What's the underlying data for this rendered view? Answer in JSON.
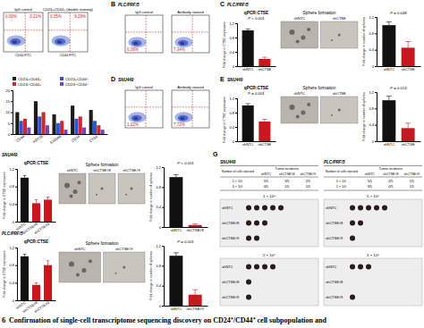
{
  "chart_data": [
    {
      "type": "bar",
      "categories": [
        "CD44",
        "KRT20",
        "S100A6",
        "CD24",
        "CTSE"
      ],
      "series": [
        {
          "name": "CD24+CD44+",
          "color": "#1b1b1b",
          "values": [
            10,
            15,
            9,
            13,
            11
          ]
        },
        {
          "name": "CD24+CD44−",
          "color": "#2f55d4",
          "values": [
            6,
            8,
            5,
            7,
            6
          ]
        },
        {
          "name": "CD24−CD44+",
          "color": "#d0282e",
          "values": [
            7,
            10,
            6,
            8,
            4
          ]
        },
        {
          "name": "CD24−CD44−",
          "color": "#7b44b5",
          "values": [
            3,
            4,
            2,
            3,
            2
          ]
        }
      ],
      "ylim": [
        0,
        20
      ],
      "yticks": [
        0,
        5,
        10,
        15,
        20
      ],
      "legend": "top"
    },
    {
      "type": "bar",
      "title": "qPCR:CTSE",
      "y_label": "Fold change in CTSE expression",
      "annotations": [
        "P < 0.001"
      ],
      "categories": [
        "shNTC",
        "shCTSE"
      ],
      "values": [
        1,
        0.2
      ],
      "errors": [
        0.04,
        0.05
      ],
      "colors": [
        "#111111",
        "#c8171e"
      ],
      "ylim": [
        0,
        1.2
      ],
      "yticks": [
        0,
        0.4,
        0.8,
        1.2
      ]
    },
    {
      "type": "bar",
      "y_label": "Fold change in number of spheres",
      "annotations": [
        "P = 0.048"
      ],
      "categories": [
        "shNTC",
        "shCTSE"
      ],
      "values": [
        1,
        0.45
      ],
      "errors": [
        0.08,
        0.15
      ],
      "colors": [
        "#111111",
        "#c8171e"
      ],
      "ylim": [
        0,
        1.2
      ],
      "yticks": [
        0,
        0.4,
        0.8,
        1.2
      ]
    },
    {
      "type": "bar",
      "title": "qPCR:CTSE",
      "y_label": "Fold change in CTSE expression",
      "annotations": [
        "P = 0.001"
      ],
      "categories": [
        "shNTC",
        "shCTSE"
      ],
      "values": [
        1,
        0.55
      ],
      "errors": [
        0.05,
        0.06
      ],
      "colors": [
        "#111111",
        "#c8171e"
      ],
      "ylim": [
        0,
        1.2
      ],
      "yticks": [
        0,
        0.4,
        0.8,
        1.2
      ]
    },
    {
      "type": "bar",
      "y_label": "Fold change in number of spheres",
      "annotations": [
        "P = 0.013"
      ],
      "categories": [
        "shNTC",
        "shCTSE"
      ],
      "values": [
        1,
        0.32
      ],
      "errors": [
        0.1,
        0.12
      ],
      "colors": [
        "#111111",
        "#c8171e"
      ],
      "ylim": [
        0,
        1.2
      ],
      "yticks": [
        0,
        0.4,
        0.8,
        1.2
      ]
    },
    {
      "type": "bar",
      "title": "qPCR:CTSE",
      "y_label": "Fold change in CTSE expression",
      "categories": [
        "shNTC",
        "shCTSE#8",
        "shCTSE#9"
      ],
      "values": [
        1,
        0.42,
        0.5
      ],
      "errors": [
        0.05,
        0.08,
        0.06
      ],
      "colors": [
        "#111111",
        "#c8171e",
        "#c8171e"
      ],
      "ylim": [
        0,
        1.2
      ],
      "yticks": [
        0,
        0.4,
        0.8,
        1.2
      ]
    },
    {
      "type": "bar",
      "y_label": "Fold change in number of spheres",
      "annotations": [
        "P < 0.001"
      ],
      "categories": [
        "shNTC",
        "shCTSE#8"
      ],
      "values": [
        1,
        0.04
      ],
      "errors": [
        0.05,
        0.02
      ],
      "colors": [
        "#111111",
        "#c8171e"
      ],
      "ylim": [
        0,
        1.2
      ],
      "yticks": [
        0,
        0.4,
        0.8,
        1.2
      ]
    },
    {
      "type": "bar",
      "title": "qPCR:CTSE",
      "y_label": "Fold change in CTSE expression",
      "categories": [
        "shNTC",
        "shCTSE#8",
        "shCTSE#9"
      ],
      "values": [
        1,
        0.35,
        0.8
      ],
      "errors": [
        0.05,
        0.05,
        0.1
      ],
      "colors": [
        "#111111",
        "#c8171e",
        "#c8171e"
      ],
      "ylim": [
        0,
        1.2
      ],
      "yticks": [
        0,
        0.4,
        0.8,
        1.2
      ]
    },
    {
      "type": "bar",
      "y_label": "Fold change in number of spheres",
      "annotations": [
        "P = 0.001"
      ],
      "categories": [
        "shNTC",
        "shCTSE#9"
      ],
      "values": [
        1,
        0.22
      ],
      "errors": [
        0.06,
        0.1
      ],
      "colors": [
        "#111111",
        "#c8171e"
      ],
      "ylim": [
        0,
        1.2
      ],
      "yticks": [
        0,
        0.4,
        0.8,
        1.2
      ]
    }
  ],
  "figure": {
    "caption_number": "6",
    "caption": "Confirmation of single-cell transcriptome sequencing discovery on CD24⁺/CD44⁺ cell subpopulation and",
    "panels": [
      {
        "label": "B",
        "cell_line": "PLC/PRF/5"
      },
      {
        "label": "C",
        "cell_line": "PLC/PRF/5"
      },
      {
        "label": "D",
        "cell_line": "SNU449"
      },
      {
        "label": "E",
        "cell_line": "SNU449"
      },
      {
        "label": "G"
      }
    ],
    "row_labels": [
      "SNU449",
      "PLC/PRF/5"
    ],
    "flow_plots": [
      {
        "title": "IgG control",
        "x_label": "CD44-FITC",
        "percents": [
          "0.00%",
          "0.21%"
        ]
      },
      {
        "title": "CD24+CD44+ (double staining)",
        "x_label": "CD44-FITC",
        "percents": [
          "0.05%",
          "9.29%"
        ]
      },
      {
        "title": "IgG control",
        "percents": [
          "0.09%"
        ]
      },
      {
        "title": "Antibody stained",
        "percents": [
          "7.34%"
        ]
      },
      {
        "title": "IgG control",
        "percents": [
          "1.22%"
        ]
      },
      {
        "title": "Antibody stained",
        "percents": [
          "7.72%"
        ]
      }
    ],
    "sphere_images": [
      {
        "title": "Sphere formation",
        "labels": [
          "shNTC",
          "shCTSE"
        ]
      },
      {
        "title": "Sphere formation",
        "labels": [
          "shNTC",
          "shCTSE"
        ]
      },
      {
        "title": "Sphere formation",
        "labels": [
          "shNTC",
          "shCTSE#8",
          "shCTSE#9"
        ]
      },
      {
        "title": "Sphere formation",
        "labels": [
          "shNTC",
          "shCTSE#9"
        ]
      }
    ],
    "tables": [
      {
        "cell_line": "SNU449",
        "header": [
          "Number of cells injected",
          "Tumor incidence"
        ],
        "columns": [
          "shNTC",
          "shCTSE#8",
          "shCTSE#9"
        ],
        "rows": [
          [
            "1 × 10⁵",
            "5/5",
            "3/5",
            "2/5"
          ],
          [
            "5 × 10⁴",
            "4/5",
            "1/5",
            "1/5"
          ]
        ]
      },
      {
        "cell_line": "PLC/PRF/5",
        "header": [
          "Number of cells injected",
          "Tumor incidence"
        ],
        "columns": [
          "shNTC",
          "shCTSE#8",
          "shCTSE#9"
        ],
        "rows": [
          [
            "5 × 10⁵",
            "5/5",
            "2/5",
            "1/5"
          ],
          [
            "1 × 10⁵",
            "3/5",
            "0/5",
            "1/5"
          ]
        ]
      }
    ],
    "tumor_images": [
      {
        "label": "1 × 10⁵",
        "rows": [
          {
            "name": "shNTC",
            "tumors": 5
          },
          {
            "name": "shCTSE#8",
            "tumors": 3
          },
          {
            "name": "shCTSE#9",
            "tumors": 2
          }
        ]
      },
      {
        "label": "5 × 10⁴",
        "rows": [
          {
            "name": "shNTC",
            "tumors": 4
          },
          {
            "name": "shCTSE#8",
            "tumors": 1
          },
          {
            "name": "shCTSE#9",
            "tumors": 1
          }
        ]
      },
      {
        "label": "5 × 10⁵",
        "rows": [
          {
            "name": "shNTC",
            "tumors": 5
          },
          {
            "name": "shCTSE#8",
            "tumors": 2
          },
          {
            "name": "shCTSE#9",
            "tumors": 1
          }
        ]
      },
      {
        "label": "1 × 10⁵",
        "rows": [
          {
            "name": "shNTC",
            "tumors": 3
          },
          {
            "name": "shCTSE#8",
            "tumors": 0
          },
          {
            "name": "shCTSE#9",
            "tumors": 1
          }
        ]
      }
    ]
  }
}
